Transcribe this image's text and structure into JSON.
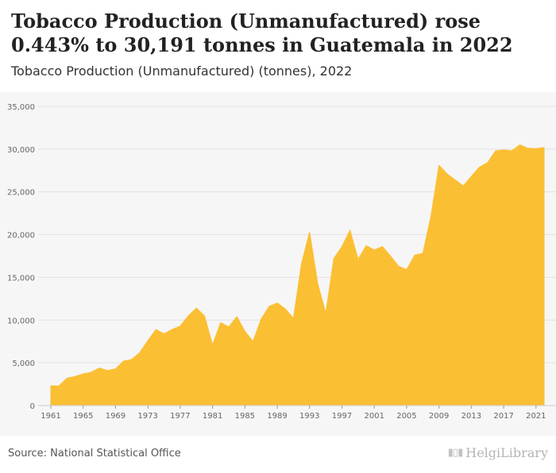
{
  "header": {
    "title": "Tobacco Production (Unmanufactured) rose 0.443% to 30,191 tonnes in Guatemala in 2022",
    "subtitle": "Tobacco Production (Unmanufactured) (tonnes), 2022"
  },
  "footer": {
    "source": "Source: National Statistical Office",
    "brand": "HelgiLibrary"
  },
  "colors": {
    "area": "#fbbf33",
    "grid": "#e2e2e2",
    "axis_text": "#666666"
  },
  "chart_data": {
    "type": "area",
    "title": "Tobacco Production (Unmanufactured) rose 0.443% to 30,191 tonnes in Guatemala in 2022",
    "subtitle": "Tobacco Production (Unmanufactured) (tonnes), 2022",
    "xlabel": "",
    "ylabel": "",
    "ylim": [
      0,
      35000
    ],
    "yticks": [
      0,
      5000,
      10000,
      15000,
      20000,
      25000,
      30000,
      35000
    ],
    "ytick_labels": [
      "0",
      "5,000",
      "10,000",
      "15,000",
      "20,000",
      "25,000",
      "30,000",
      "35,000"
    ],
    "xticks": [
      1961,
      1965,
      1969,
      1973,
      1977,
      1981,
      1985,
      1989,
      1993,
      1997,
      2001,
      2005,
      2009,
      2013,
      2017,
      2021
    ],
    "grid": true,
    "legend": "none",
    "x": [
      1961,
      1962,
      1963,
      1964,
      1965,
      1966,
      1967,
      1968,
      1969,
      1970,
      1971,
      1972,
      1973,
      1974,
      1975,
      1976,
      1977,
      1978,
      1979,
      1980,
      1981,
      1982,
      1983,
      1984,
      1985,
      1986,
      1987,
      1988,
      1989,
      1990,
      1991,
      1992,
      1993,
      1994,
      1995,
      1996,
      1997,
      1998,
      1999,
      2000,
      2001,
      2002,
      2003,
      2004,
      2005,
      2006,
      2007,
      2008,
      2009,
      2010,
      2011,
      2012,
      2013,
      2014,
      2015,
      2016,
      2017,
      2018,
      2019,
      2020,
      2021,
      2022
    ],
    "values": [
      2300,
      2300,
      3200,
      3400,
      3700,
      3900,
      4400,
      4100,
      4300,
      5200,
      5400,
      6200,
      7600,
      8900,
      8400,
      8900,
      9300,
      10500,
      11400,
      10500,
      7100,
      9700,
      9200,
      10400,
      8700,
      7500,
      10100,
      11600,
      12000,
      11300,
      10200,
      16600,
      20300,
      14300,
      10800,
      17200,
      18600,
      20500,
      17100,
      18700,
      18200,
      18600,
      17500,
      16300,
      15900,
      17600,
      17800,
      22100,
      28100,
      27100,
      26400,
      25700,
      26800,
      27900,
      28400,
      29800,
      29900,
      29800,
      30500,
      30100,
      30060,
      30191
    ]
  }
}
